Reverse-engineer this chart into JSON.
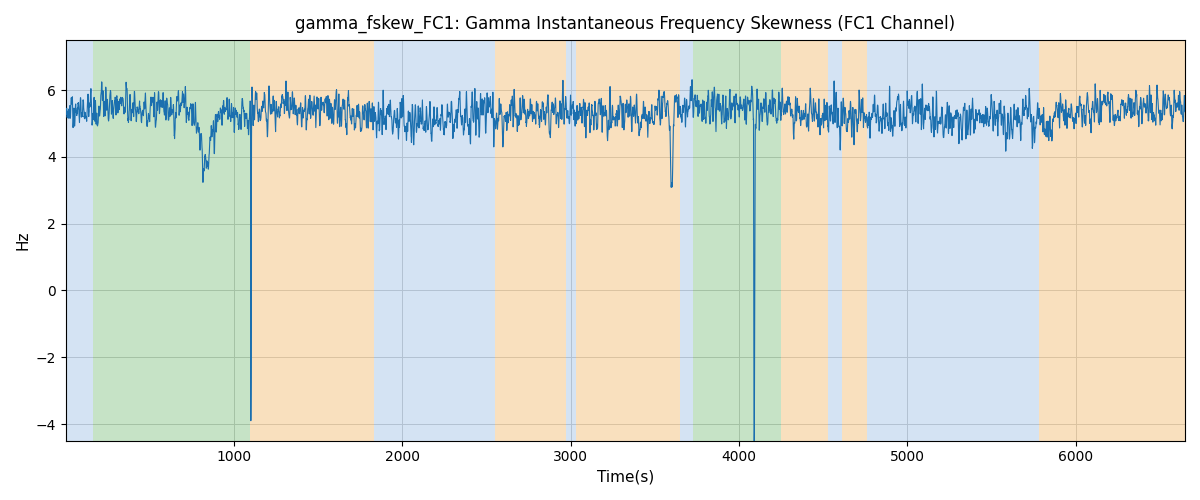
{
  "title": "gamma_fskew_FC1: Gamma Instantaneous Frequency Skewness (FC1 Channel)",
  "xlabel": "Time(s)",
  "ylabel": "Hz",
  "xlim": [
    0,
    6650
  ],
  "ylim": [
    -4.5,
    7.5
  ],
  "line_color": "#1b6faf",
  "line_width": 0.8,
  "segments": [
    {
      "start": 0,
      "end": 165,
      "color": "#aac8e8",
      "alpha": 0.5
    },
    {
      "start": 165,
      "end": 1095,
      "color": "#8ec88e",
      "alpha": 0.5
    },
    {
      "start": 1095,
      "end": 1830,
      "color": "#f5c88a",
      "alpha": 0.55
    },
    {
      "start": 1830,
      "end": 2550,
      "color": "#aac8e8",
      "alpha": 0.5
    },
    {
      "start": 2550,
      "end": 2970,
      "color": "#f5c88a",
      "alpha": 0.55
    },
    {
      "start": 2970,
      "end": 3030,
      "color": "#aac8e8",
      "alpha": 0.5
    },
    {
      "start": 3030,
      "end": 3650,
      "color": "#f5c88a",
      "alpha": 0.55
    },
    {
      "start": 3650,
      "end": 3730,
      "color": "#aac8e8",
      "alpha": 0.5
    },
    {
      "start": 3730,
      "end": 4250,
      "color": "#8ec88e",
      "alpha": 0.5
    },
    {
      "start": 4250,
      "end": 4530,
      "color": "#f5c88a",
      "alpha": 0.55
    },
    {
      "start": 4530,
      "end": 4610,
      "color": "#aac8e8",
      "alpha": 0.5
    },
    {
      "start": 4610,
      "end": 4760,
      "color": "#f5c88a",
      "alpha": 0.55
    },
    {
      "start": 4760,
      "end": 5660,
      "color": "#aac8e8",
      "alpha": 0.5
    },
    {
      "start": 5660,
      "end": 5780,
      "color": "#aac8e8",
      "alpha": 0.5
    },
    {
      "start": 5780,
      "end": 6650,
      "color": "#f5c88a",
      "alpha": 0.55
    }
  ],
  "yticks": [
    -4,
    -2,
    0,
    2,
    4,
    6
  ],
  "xticks": [
    1000,
    2000,
    3000,
    4000,
    5000,
    6000
  ],
  "figsize": [
    12.0,
    5.0
  ],
  "dpi": 100,
  "grid_color": "#bbbbbb"
}
